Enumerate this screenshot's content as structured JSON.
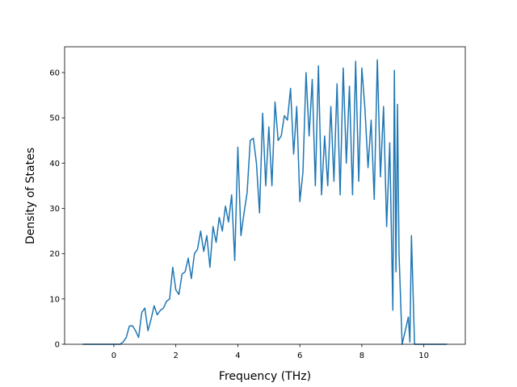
{
  "chart_data": {
    "type": "line",
    "xlabel": "Frequency (THz)",
    "ylabel": "Density of States",
    "xlim": [
      -1.5875,
      11.3375
    ],
    "ylim": [
      0,
      65.7
    ],
    "xticks": [
      0,
      2,
      4,
      6,
      8,
      10
    ],
    "yticks": [
      0,
      10,
      20,
      30,
      40,
      50,
      60
    ],
    "x": [
      -1,
      0.2,
      0.3,
      0.4,
      0.5,
      0.6,
      0.7,
      0.8,
      0.9,
      1.0,
      1.1,
      1.2,
      1.3,
      1.4,
      1.5,
      1.6,
      1.7,
      1.8,
      1.9,
      2.0,
      2.1,
      2.2,
      2.3,
      2.4,
      2.5,
      2.6,
      2.7,
      2.8,
      2.9,
      3.0,
      3.1,
      3.2,
      3.3,
      3.4,
      3.5,
      3.6,
      3.7,
      3.8,
      3.9,
      4.0,
      4.1,
      4.2,
      4.3,
      4.4,
      4.5,
      4.6,
      4.7,
      4.8,
      4.9,
      5.0,
      5.1,
      5.2,
      5.3,
      5.4,
      5.5,
      5.6,
      5.7,
      5.8,
      5.9,
      6.0,
      6.1,
      6.2,
      6.3,
      6.4,
      6.5,
      6.6,
      6.7,
      6.8,
      6.9,
      7.0,
      7.1,
      7.2,
      7.3,
      7.4,
      7.5,
      7.6,
      7.7,
      7.8,
      7.9,
      8.0,
      8.1,
      8.2,
      8.3,
      8.4,
      8.5,
      8.6,
      8.7,
      8.8,
      8.9,
      9.0,
      9.05,
      9.1,
      9.15,
      9.2,
      9.3,
      9.4,
      9.5,
      9.55,
      9.6,
      9.7,
      10.75
    ],
    "series": [
      {
        "color": "#1f77b4",
        "values": [
          0,
          0,
          0.5,
          1.5,
          4,
          4.1,
          3,
          1.5,
          7,
          8,
          3,
          5.5,
          8.5,
          6.5,
          7.5,
          8,
          9.5,
          10,
          17,
          12,
          11,
          15.5,
          16,
          19,
          14.5,
          20,
          21,
          25,
          20.5,
          24,
          17,
          26,
          22.5,
          28,
          25,
          30.5,
          27,
          33,
          18.5,
          43.5,
          24,
          29,
          33.5,
          45,
          45.5,
          40,
          29,
          51,
          35,
          48,
          35,
          53.5,
          45,
          46,
          50.5,
          49.5,
          56.5,
          42,
          52.5,
          31.5,
          38,
          60,
          46,
          58.5,
          35,
          61.5,
          33,
          46,
          35,
          52.5,
          36,
          57.5,
          33,
          61,
          40,
          57,
          33,
          62.5,
          36,
          61,
          52,
          39,
          49.5,
          32,
          62.8,
          37,
          52.5,
          26,
          44.5,
          7.5,
          60.5,
          16,
          53,
          20,
          0,
          3,
          6,
          0.5,
          24,
          0,
          0
        ]
      }
    ]
  }
}
